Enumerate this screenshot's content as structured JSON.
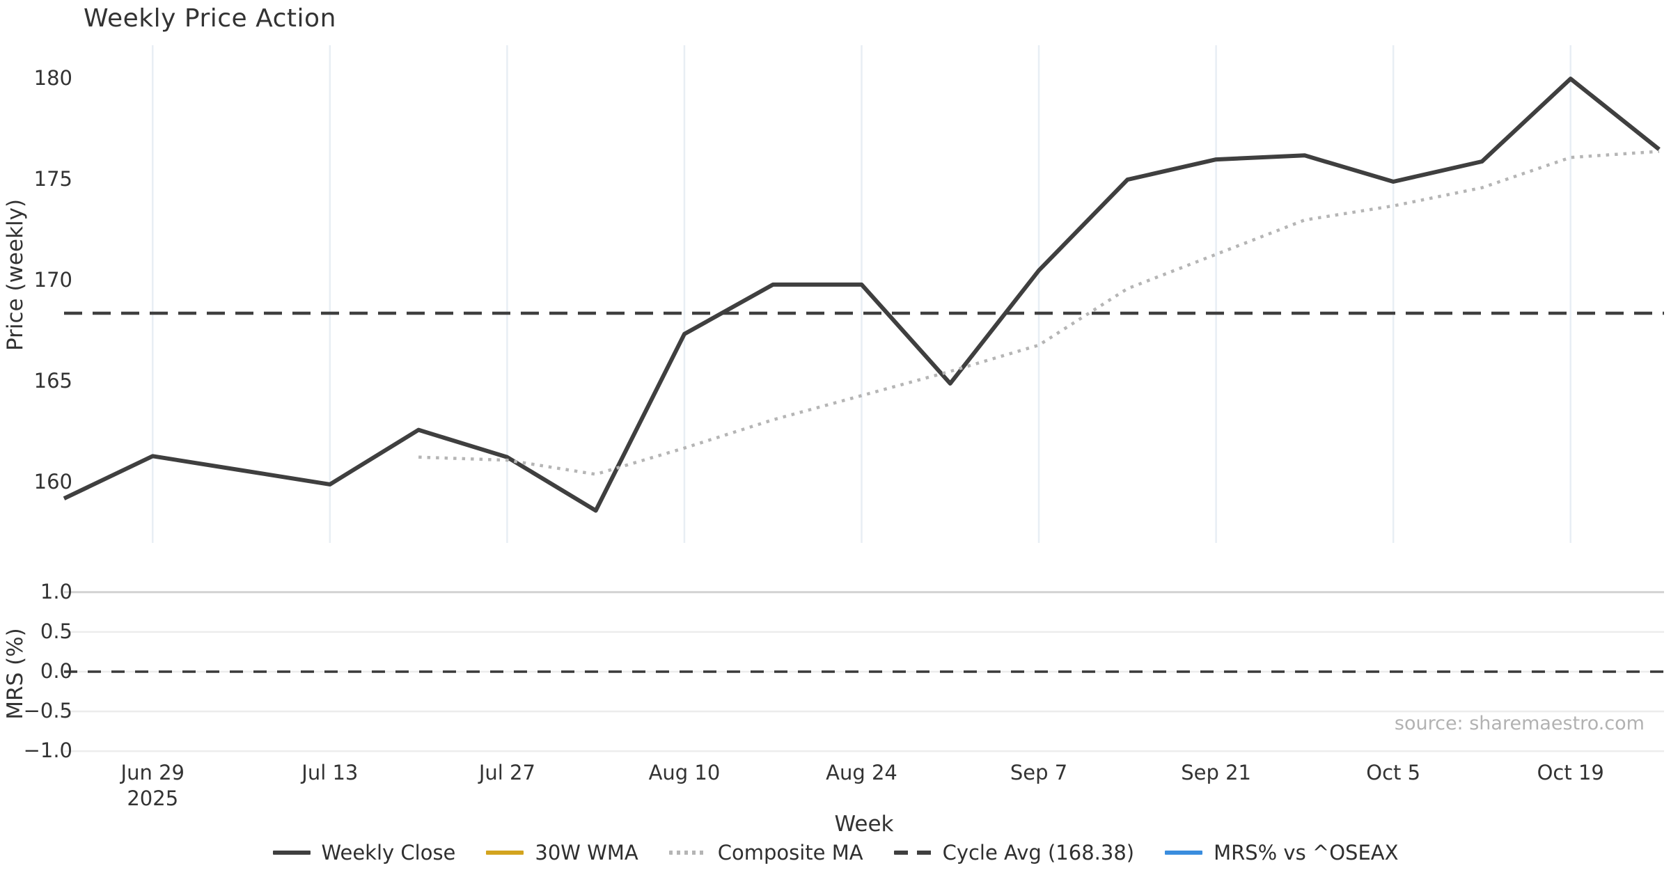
{
  "title": "Weekly Price Action",
  "source_note": "source: sharemaestro.com",
  "chart_data": {
    "type": "line",
    "title": "Weekly Price Action",
    "xlabel": "Week",
    "x_weekly_dates": [
      "Jun 22",
      "Jun 29",
      "Jul 6",
      "Jul 13",
      "Jul 20",
      "Jul 27",
      "Aug 3",
      "Aug 10",
      "Aug 17",
      "Aug 24",
      "Aug 31",
      "Sep 7",
      "Sep 14",
      "Sep 21",
      "Sep 28",
      "Oct 5",
      "Oct 12",
      "Oct 19",
      "Oct 26"
    ],
    "x_tick_labels": [
      "Jun 29",
      "Jul 13",
      "Jul 27",
      "Aug 10",
      "Aug 24",
      "Sep 7",
      "Sep 21",
      "Oct 5",
      "Oct 19"
    ],
    "x_tick_week_indices": [
      1,
      3,
      5,
      7,
      9,
      11,
      13,
      15,
      17
    ],
    "x_first_tick_year": "2025",
    "panels": [
      {
        "name": "price",
        "ylabel": "Price (weekly)",
        "ylim": [
          157.0,
          181.66
        ],
        "yticks": [
          160,
          165,
          170,
          175,
          180
        ],
        "grid": "vertical",
        "series": [
          {
            "name": "Weekly Close",
            "kind": "line",
            "style": "solid",
            "color": "#3f3f3f",
            "values": [
              159.2,
              161.3,
              160.6,
              159.9,
              162.6,
              161.25,
              158.6,
              167.35,
              169.8,
              169.8,
              164.9,
              170.5,
              175.0,
              176.0,
              176.2,
              174.9,
              175.9,
              180.0,
              176.5
            ]
          },
          {
            "name": "30W WMA",
            "kind": "line",
            "style": "solid",
            "color": "#d3a41e",
            "values": []
          },
          {
            "name": "Composite MA",
            "kind": "line",
            "style": "dotted",
            "color": "#b5b5b5",
            "values": [
              null,
              null,
              null,
              null,
              161.25,
              161.1,
              160.4,
              161.7,
              163.1,
              164.3,
              165.5,
              166.8,
              169.6,
              171.3,
              173.0,
              173.7,
              174.6,
              176.1,
              176.4
            ]
          },
          {
            "name": "Cycle Avg (168.38)",
            "kind": "hline",
            "style": "dashed",
            "color": "#3f3f3f",
            "value": 168.38
          }
        ]
      },
      {
        "name": "mrs",
        "ylabel": "MRS (%)",
        "ylim": [
          -1.05,
          1.05
        ],
        "yticks": [
          1.0,
          0.5,
          0.0,
          -0.5,
          -1.0
        ],
        "grid": "horizontal",
        "series": [
          {
            "name": "MRS% vs ^OSEAX",
            "kind": "line",
            "style": "solid",
            "color": "#3a8dde",
            "values": []
          },
          {
            "name": "Zero Line",
            "kind": "hline",
            "style": "dashed",
            "color": "#3a3a3a",
            "value": 0.0
          }
        ]
      }
    ],
    "legend": [
      {
        "label": "Weekly Close",
        "color": "#3f3f3f",
        "style": "solid"
      },
      {
        "label": "30W WMA",
        "color": "#d3a41e",
        "style": "solid"
      },
      {
        "label": "Composite MA",
        "color": "#b5b5b5",
        "style": "dotted"
      },
      {
        "label": "Cycle Avg (168.38)",
        "color": "#3f3f3f",
        "style": "dashed"
      },
      {
        "label": "MRS% vs ^OSEAX",
        "color": "#3a8dde",
        "style": "solid"
      }
    ],
    "grid_color_vertical": "#e8eef4",
    "grid_color_horizontal": "#ececec",
    "grid_color_horizontal_top": "#d2d2d2"
  }
}
